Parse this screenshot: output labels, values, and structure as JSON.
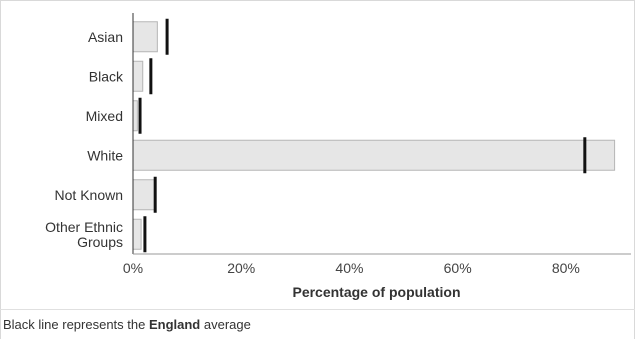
{
  "chart_data": {
    "type": "bar",
    "orientation": "horizontal",
    "categories": [
      "Asian",
      "Black",
      "Mixed",
      "White",
      "Not Known",
      "Other Ethnic Groups"
    ],
    "category_lines": [
      [
        "Asian"
      ],
      [
        "Black"
      ],
      [
        "Mixed"
      ],
      [
        "White"
      ],
      [
        "Not Known"
      ],
      [
        "Other Ethnic",
        "Groups"
      ]
    ],
    "values": [
      4.5,
      1.8,
      0.8,
      89.0,
      4.0,
      1.5
    ],
    "england_average": [
      6.3,
      3.3,
      1.3,
      83.5,
      4.1,
      2.2
    ],
    "xlabel": "Percentage of population",
    "ylabel": "",
    "xlim": [
      0,
      90
    ],
    "xticks": [
      0,
      20,
      40,
      60,
      80
    ],
    "xtick_labels": [
      "0%",
      "20%",
      "40%",
      "60%",
      "80%"
    ],
    "grid": false,
    "colors": {
      "bar_fill": "#e6e6e6",
      "bar_stroke": "#b5b5b5",
      "average_line": "#111111",
      "axis": "#333333"
    }
  },
  "footnote": {
    "prefix": "Black line represents the ",
    "bold": "England",
    "suffix": " average"
  }
}
